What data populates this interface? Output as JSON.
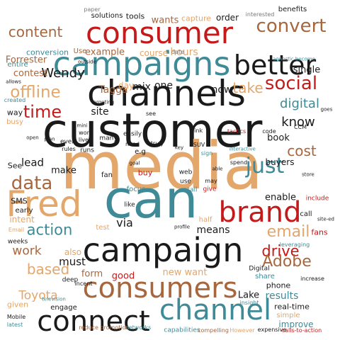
{
  "cloud": {
    "palette": {
      "black": "#1a1a1a",
      "blue": "#3e8a96",
      "brown": "#a8663d",
      "red": "#c41a1a",
      "tan": "#e3a66b",
      "grey": "#7a7a7a"
    },
    "words": [
      {
        "text": "customer",
        "color": "black"
      },
      {
        "text": "media",
        "color": "tan"
      },
      {
        "text": "can",
        "color": "blue"
      },
      {
        "text": "channels",
        "color": "black"
      },
      {
        "text": "campaigns",
        "color": "blue"
      },
      {
        "text": "campaign",
        "color": "black"
      },
      {
        "text": "consumer",
        "color": "red"
      },
      {
        "text": "consumers",
        "color": "brown"
      },
      {
        "text": "brand",
        "color": "red"
      },
      {
        "text": "channel",
        "color": "blue"
      },
      {
        "text": "connect",
        "color": "black"
      },
      {
        "text": "Fred",
        "color": "tan"
      },
      {
        "text": "better",
        "color": "black"
      },
      {
        "text": "convert",
        "color": "brown"
      },
      {
        "text": "social",
        "color": "red"
      },
      {
        "text": "just",
        "color": "blue"
      },
      {
        "text": "email",
        "color": "tan"
      },
      {
        "text": "offline",
        "color": "tan"
      },
      {
        "text": "time",
        "color": "red"
      },
      {
        "text": "data",
        "color": "brown"
      },
      {
        "text": "action",
        "color": "blue"
      },
      {
        "text": "drive",
        "color": "red"
      },
      {
        "text": "based",
        "color": "tan"
      },
      {
        "text": "Adobe",
        "color": "brown"
      },
      {
        "text": "content",
        "color": "brown"
      },
      {
        "text": "take",
        "color": "tan"
      },
      {
        "text": "digital",
        "color": "blue"
      },
      {
        "text": "cost",
        "color": "brown"
      },
      {
        "text": "know",
        "color": "black"
      },
      {
        "text": "Wendy",
        "color": "black"
      },
      {
        "text": "Toyota",
        "color": "tan"
      },
      {
        "text": "work",
        "color": "brown"
      },
      {
        "text": "must",
        "color": "black"
      },
      {
        "text": "lead",
        "color": "black"
      },
      {
        "text": "via",
        "color": "black"
      },
      {
        "text": "now",
        "color": "black"
      },
      {
        "text": "one",
        "color": "black"
      },
      {
        "text": "mix",
        "color": "black"
      },
      {
        "text": "Tagga",
        "color": "brown"
      },
      {
        "text": "day",
        "color": "tan"
      },
      {
        "text": "site",
        "color": "black"
      },
      {
        "text": "make",
        "color": "black"
      },
      {
        "text": "means",
        "color": "black"
      },
      {
        "text": "form",
        "color": "brown"
      },
      {
        "text": "good",
        "color": "red"
      },
      {
        "text": "results",
        "color": "blue"
      },
      {
        "text": "book",
        "color": "black"
      },
      {
        "text": "enable",
        "color": "black"
      },
      {
        "text": "buyers",
        "color": "black"
      },
      {
        "text": "single",
        "color": "black"
      },
      {
        "text": "hours",
        "color": "tan"
      },
      {
        "text": "course",
        "color": "tan"
      },
      {
        "text": "example",
        "color": "brown"
      },
      {
        "text": "wants",
        "color": "brown"
      },
      {
        "text": "order",
        "color": "black"
      },
      {
        "text": "capture",
        "color": "tan"
      },
      {
        "text": "tools",
        "color": "black"
      },
      {
        "text": "solutions",
        "color": "black"
      },
      {
        "text": "paper",
        "color": "grey"
      },
      {
        "text": "benefits",
        "color": "black"
      },
      {
        "text": "interested",
        "color": "grey"
      },
      {
        "text": "Forrester",
        "color": "brown"
      },
      {
        "text": "conversion",
        "color": "blue"
      },
      {
        "text": "contest",
        "color": "brown"
      },
      {
        "text": "entire",
        "color": "blue"
      },
      {
        "text": "Use",
        "color": "brown"
      },
      {
        "text": "date",
        "color": "grey"
      },
      {
        "text": "SMS",
        "color": "black"
      },
      {
        "text": "intent",
        "color": "tan"
      },
      {
        "text": "early",
        "color": "black"
      },
      {
        "text": "See",
        "color": "black"
      },
      {
        "text": "way",
        "color": "black"
      },
      {
        "text": "busy",
        "color": "tan"
      },
      {
        "text": "also",
        "color": "tan"
      },
      {
        "text": "new want",
        "color": "tan"
      },
      {
        "text": "real-time",
        "color": "black"
      },
      {
        "text": "improve",
        "color": "blue"
      },
      {
        "text": "simple",
        "color": "tan"
      },
      {
        "text": "Lake",
        "color": "black"
      },
      {
        "text": "phone",
        "color": "black"
      },
      {
        "text": "share",
        "color": "blue"
      },
      {
        "text": "engage",
        "color": "black"
      },
      {
        "text": "given",
        "color": "tan"
      },
      {
        "text": "reduce promotion",
        "color": "brown"
      },
      {
        "text": "networks",
        "color": "blue"
      },
      {
        "text": "capabilities",
        "color": "blue"
      },
      {
        "text": "compelling",
        "color": "brown"
      },
      {
        "text": "However",
        "color": "tan"
      },
      {
        "text": "expensive",
        "color": "black"
      },
      {
        "text": "calls-to-action",
        "color": "red"
      },
      {
        "text": "increase",
        "color": "black"
      },
      {
        "text": "call",
        "color": "black"
      },
      {
        "text": "fans",
        "color": "red"
      },
      {
        "text": "include",
        "color": "red"
      },
      {
        "text": "CCM",
        "color": "black"
      },
      {
        "text": "code",
        "color": "black"
      },
      {
        "text": "tactics",
        "color": "red"
      },
      {
        "text": "interactive",
        "color": "blue"
      },
      {
        "text": "agnostic become",
        "color": "blue"
      },
      {
        "text": "e.g",
        "color": "black"
      },
      {
        "text": "leveraging",
        "color": "blue"
      },
      {
        "text": "Digital",
        "color": "black"
      },
      {
        "text": "Mobile",
        "color": "black"
      },
      {
        "text": "latest",
        "color": "blue"
      },
      {
        "text": "focus",
        "color": "blue"
      },
      {
        "text": "retail",
        "color": "blue"
      },
      {
        "text": "web",
        "color": "black"
      },
      {
        "text": "use",
        "color": "black"
      },
      {
        "text": "buy",
        "color": "red"
      },
      {
        "text": "fan",
        "color": "black"
      },
      {
        "text": "need",
        "color": "black"
      },
      {
        "text": "truly",
        "color": "black"
      },
      {
        "text": "easily",
        "color": "black"
      },
      {
        "text": "many",
        "color": "black"
      },
      {
        "text": "runs",
        "color": "black"
      },
      {
        "text": "give",
        "color": "red"
      },
      {
        "text": "like",
        "color": "black"
      },
      {
        "text": "test",
        "color": "tan"
      },
      {
        "text": "sign",
        "color": "blue"
      },
      {
        "text": "half",
        "color": "tan"
      },
      {
        "text": "deep",
        "color": "black"
      },
      {
        "text": "incent",
        "color": "black"
      },
      {
        "text": "weeks",
        "color": "black"
      },
      {
        "text": "even",
        "color": "black"
      },
      {
        "text": "word",
        "color": "black"
      },
      {
        "text": "lives",
        "color": "black"
      },
      {
        "text": "rules",
        "color": "black"
      },
      {
        "text": "Email",
        "color": "tan"
      },
      {
        "text": "created",
        "color": "blue"
      },
      {
        "text": "allows",
        "color": "black"
      },
      {
        "text": "outside",
        "color": "black"
      },
      {
        "text": "targeting",
        "color": "black"
      },
      {
        "text": "spend",
        "color": "black"
      },
      {
        "text": "SUV",
        "color": "black"
      },
      {
        "text": "link",
        "color": "black"
      },
      {
        "text": "may",
        "color": "black"
      },
      {
        "text": "see",
        "color": "black"
      },
      {
        "text": "goal",
        "color": "black"
      },
      {
        "text": "profile",
        "color": "black"
      },
      {
        "text": "insight",
        "color": "blue"
      },
      {
        "text": "television",
        "color": "blue"
      },
      {
        "text": "site-ed",
        "color": "black"
      },
      {
        "text": "mini",
        "color": "black"
      },
      {
        "text": "open",
        "color": "black"
      },
      {
        "text": "plan",
        "color": "black"
      },
      {
        "text": "key",
        "color": "black"
      },
      {
        "text": "able",
        "color": "black"
      },
      {
        "text": "store",
        "color": "black"
      },
      {
        "text": "goes",
        "color": "black"
      }
    ]
  }
}
